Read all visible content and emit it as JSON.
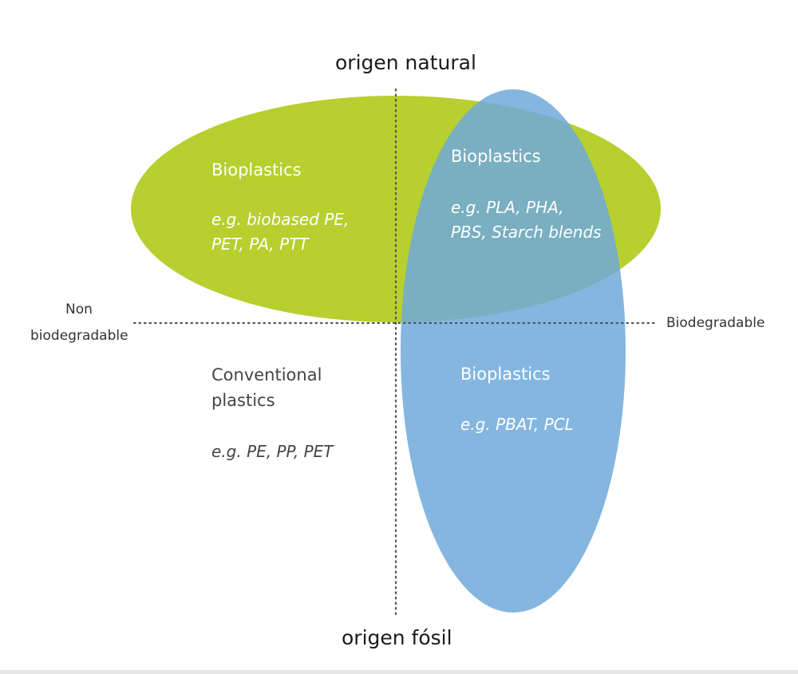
{
  "axes": {
    "top": "origen natural",
    "bottom": "origen fósil",
    "left_line1": "Non",
    "left_line2": "biodegradable",
    "right": "Biodegradable"
  },
  "quadrants": {
    "top_left": {
      "title": "Bioplastics",
      "example_line1": "e.g. biobased PE,",
      "example_line2": "PET, PA, PTT"
    },
    "top_right": {
      "title": "Bioplastics",
      "example_line1": "e.g. PLA, PHA,",
      "example_line2": "PBS, Starch blends"
    },
    "bottom_left": {
      "title_line1": "Conventional",
      "title_line2": "plastics",
      "example": "e.g. PE, PP, PET"
    },
    "bottom_right": {
      "title": "Bioplastics",
      "example": "e.g. PBAT, PCL"
    }
  },
  "colors": {
    "biobased_ellipse": "#b6cf2e",
    "biodegradable_ellipse": "#6fa8d8",
    "axis_dots": "#555555"
  }
}
